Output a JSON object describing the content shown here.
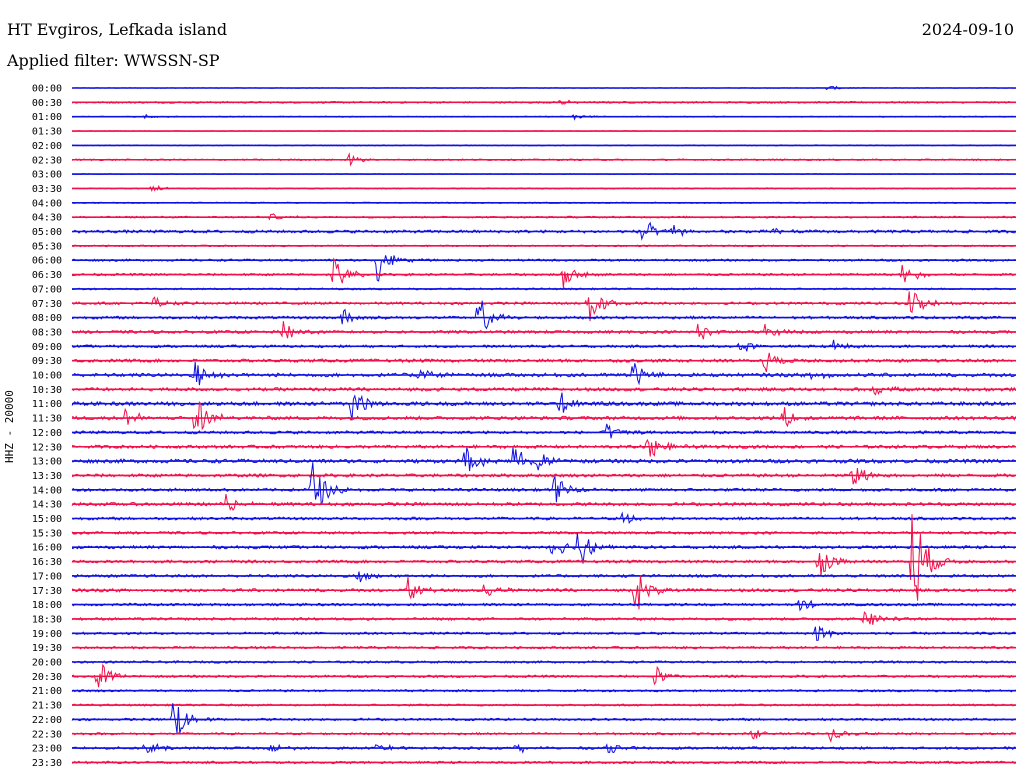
{
  "header": {
    "station": "HT Evgiros, Lefkada island",
    "date": "2024-09-10",
    "filter": "Applied filter: WWSSN-SP",
    "channel": "HHZ - 20000"
  },
  "chart_data": {
    "type": "seismogram",
    "xlabel": "",
    "ylabel": "HHZ - 20000",
    "colors": [
      "#1010e0",
      "#f0104a"
    ],
    "grid": false,
    "time_labels": [
      "00:00",
      "00:30",
      "01:00",
      "01:30",
      "02:00",
      "02:30",
      "03:00",
      "03:30",
      "04:00",
      "04:30",
      "05:00",
      "05:30",
      "06:00",
      "06:30",
      "07:00",
      "07:30",
      "08:00",
      "08:30",
      "09:00",
      "09:30",
      "10:00",
      "10:30",
      "11:00",
      "11:30",
      "12:00",
      "12:30",
      "13:00",
      "13:30",
      "14:00",
      "14:30",
      "15:00",
      "15:30",
      "16:00",
      "16:30",
      "17:00",
      "17:30",
      "18:00",
      "18:30",
      "19:00",
      "19:30",
      "20:00",
      "20:30",
      "21:00",
      "21:30",
      "22:00",
      "22:30",
      "23:00",
      "23:30"
    ],
    "traces_noise_level": [
      0.3,
      0.9,
      0.5,
      0.4,
      0.5,
      0.8,
      0.4,
      0.6,
      0.6,
      0.9,
      1.5,
      0.8,
      1.1,
      1.2,
      0.9,
      1.3,
      1.4,
      1.5,
      1.3,
      1.6,
      1.8,
      1.7,
      1.9,
      1.8,
      1.5,
      1.6,
      1.9,
      1.6,
      1.5,
      1.7,
      1.4,
      1.3,
      1.5,
      1.4,
      1.4,
      1.6,
      1.3,
      1.3,
      1.2,
      1.2,
      1.1,
      1.2,
      1.1,
      1.0,
      1.2,
      1.1,
      1.3,
      1.2
    ],
    "events": [
      {
        "trace": "00:00",
        "minute": 24.0,
        "amplitude": 3
      },
      {
        "trace": "00:30",
        "minute": 15.5,
        "amplitude": 3
      },
      {
        "trace": "01:00",
        "minute": 2.3,
        "amplitude": 3
      },
      {
        "trace": "01:00",
        "minute": 15.9,
        "amplitude": 4
      },
      {
        "trace": "02:30",
        "minute": 8.8,
        "amplitude": 6
      },
      {
        "trace": "03:30",
        "minute": 2.5,
        "amplitude": 5
      },
      {
        "trace": "04:30",
        "minute": 6.3,
        "amplitude": 4
      },
      {
        "trace": "05:00",
        "minute": 18.1,
        "amplitude": 16
      },
      {
        "trace": "05:00",
        "minute": 19.1,
        "amplitude": 6
      },
      {
        "trace": "05:00",
        "minute": 22.3,
        "amplitude": 5
      },
      {
        "trace": "06:00",
        "minute": 9.7,
        "amplitude": 24
      },
      {
        "trace": "06:30",
        "minute": 8.3,
        "amplitude": 22
      },
      {
        "trace": "06:30",
        "minute": 15.6,
        "amplitude": 14
      },
      {
        "trace": "06:30",
        "minute": 26.4,
        "amplitude": 14
      },
      {
        "trace": "07:30",
        "minute": 2.6,
        "amplitude": 8
      },
      {
        "trace": "07:30",
        "minute": 16.4,
        "amplitude": 28
      },
      {
        "trace": "07:30",
        "minute": 26.6,
        "amplitude": 20
      },
      {
        "trace": "08:00",
        "minute": 8.6,
        "amplitude": 10
      },
      {
        "trace": "08:00",
        "minute": 12.9,
        "amplitude": 24
      },
      {
        "trace": "08:30",
        "minute": 6.7,
        "amplitude": 14
      },
      {
        "trace": "08:30",
        "minute": 19.9,
        "amplitude": 12
      },
      {
        "trace": "08:30",
        "minute": 22.0,
        "amplitude": 10
      },
      {
        "trace": "09:00",
        "minute": 21.2,
        "amplitude": 8
      },
      {
        "trace": "09:00",
        "minute": 24.2,
        "amplitude": 8
      },
      {
        "trace": "09:30",
        "minute": 22.0,
        "amplitude": 14
      },
      {
        "trace": "10:00",
        "minute": 3.9,
        "amplitude": 16
      },
      {
        "trace": "10:00",
        "minute": 11.0,
        "amplitude": 12
      },
      {
        "trace": "10:00",
        "minute": 17.8,
        "amplitude": 18
      },
      {
        "trace": "10:00",
        "minute": 23.5,
        "amplitude": 8
      },
      {
        "trace": "10:30",
        "minute": 25.4,
        "amplitude": 8
      },
      {
        "trace": "11:00",
        "minute": 8.9,
        "amplitude": 26
      },
      {
        "trace": "11:00",
        "minute": 15.5,
        "amplitude": 12
      },
      {
        "trace": "11:30",
        "minute": 1.7,
        "amplitude": 12
      },
      {
        "trace": "11:30",
        "minute": 3.9,
        "amplitude": 30
      },
      {
        "trace": "11:30",
        "minute": 22.6,
        "amplitude": 12
      },
      {
        "trace": "12:00",
        "minute": 17.0,
        "amplitude": 10
      },
      {
        "trace": "12:30",
        "minute": 18.3,
        "amplitude": 18
      },
      {
        "trace": "13:00",
        "minute": 12.5,
        "amplitude": 18
      },
      {
        "trace": "13:00",
        "minute": 14.0,
        "amplitude": 18
      },
      {
        "trace": "13:00",
        "minute": 14.8,
        "amplitude": 12
      },
      {
        "trace": "13:30",
        "minute": 24.8,
        "amplitude": 16
      },
      {
        "trace": "14:00",
        "minute": 7.6,
        "amplitude": 34
      },
      {
        "trace": "14:00",
        "minute": 15.3,
        "amplitude": 16
      },
      {
        "trace": "14:30",
        "minute": 4.9,
        "amplitude": 10
      },
      {
        "trace": "15:00",
        "minute": 17.5,
        "amplitude": 8
      },
      {
        "trace": "16:00",
        "minute": 15.2,
        "amplitude": 18
      },
      {
        "trace": "16:00",
        "minute": 16.1,
        "amplitude": 24
      },
      {
        "trace": "16:30",
        "minute": 23.7,
        "amplitude": 20
      },
      {
        "trace": "16:30",
        "minute": 26.7,
        "amplitude": 70
      },
      {
        "trace": "17:00",
        "minute": 9.1,
        "amplitude": 14
      },
      {
        "trace": "17:30",
        "minute": 10.7,
        "amplitude": 20
      },
      {
        "trace": "17:30",
        "minute": 13.1,
        "amplitude": 8
      },
      {
        "trace": "17:30",
        "minute": 17.9,
        "amplitude": 26
      },
      {
        "trace": "18:00",
        "minute": 23.1,
        "amplitude": 8
      },
      {
        "trace": "18:30",
        "minute": 25.2,
        "amplitude": 12
      },
      {
        "trace": "19:00",
        "minute": 23.6,
        "amplitude": 12
      },
      {
        "trace": "20:30",
        "minute": 0.8,
        "amplitude": 18
      },
      {
        "trace": "20:30",
        "minute": 18.5,
        "amplitude": 12
      },
      {
        "trace": "22:00",
        "minute": 3.2,
        "amplitude": 30
      },
      {
        "trace": "22:30",
        "minute": 21.6,
        "amplitude": 6
      },
      {
        "trace": "22:30",
        "minute": 24.1,
        "amplitude": 8
      },
      {
        "trace": "23:00",
        "minute": 2.3,
        "amplitude": 10
      },
      {
        "trace": "23:00",
        "minute": 6.3,
        "amplitude": 6
      },
      {
        "trace": "23:00",
        "minute": 9.7,
        "amplitude": 8
      },
      {
        "trace": "23:00",
        "minute": 14.1,
        "amplitude": 6
      },
      {
        "trace": "23:00",
        "minute": 17.0,
        "amplitude": 6
      }
    ]
  }
}
